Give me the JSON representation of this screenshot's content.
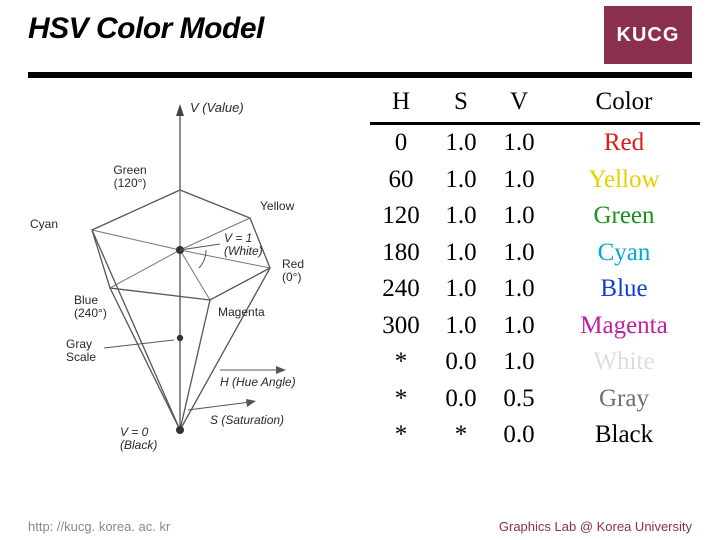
{
  "header": {
    "title": "HSV Color Model",
    "logo": "KUCG"
  },
  "diagram": {
    "axis_value_label": "V (Value)",
    "hue_axis_label": "H (Hue Angle)",
    "sat_axis_label": "S (Saturation)",
    "top_label": "V = 1\n(White)",
    "bottom_label": "V = 0\n(Black)",
    "gray_label": "Gray\nScale",
    "vertices": {
      "green": "Green\n(120°)",
      "yellow": "Yellow",
      "red": "Red\n(0°)",
      "magenta": "Magenta",
      "blue": "Blue\n(240°)",
      "cyan": "Cyan"
    },
    "line_color": "#444444",
    "node_color": "#333333",
    "text_color": "#2a2a2a",
    "axis_width": 1.2
  },
  "table": {
    "headers": [
      "H",
      "S",
      "V",
      "Color"
    ],
    "rows": [
      {
        "h": "0",
        "s": "1.0",
        "v": "1.0",
        "name": "Red",
        "color": "#e01a1a"
      },
      {
        "h": "60",
        "s": "1.0",
        "v": "1.0",
        "name": "Yellow",
        "color": "#e8d000"
      },
      {
        "h": "120",
        "s": "1.0",
        "v": "1.0",
        "name": "Green",
        "color": "#1a8f1a"
      },
      {
        "h": "180",
        "s": "1.0",
        "v": "1.0",
        "name": "Cyan",
        "color": "#00aad4"
      },
      {
        "h": "240",
        "s": "1.0",
        "v": "1.0",
        "name": "Blue",
        "color": "#1040d0"
      },
      {
        "h": "300",
        "s": "1.0",
        "v": "1.0",
        "name": "Magenta",
        "color": "#c020a0"
      },
      {
        "h": "*",
        "s": "0.0",
        "v": "1.0",
        "name": "White",
        "color": "#dddddd"
      },
      {
        "h": "*",
        "s": "0.0",
        "v": "0.5",
        "name": "Gray",
        "color": "#707070"
      },
      {
        "h": "*",
        "s": "*",
        "v": "0.0",
        "name": "Black",
        "color": "#000000"
      }
    ],
    "header_fontsize": 25,
    "row_fontsize": 25,
    "border_color": "#000000"
  },
  "footer": {
    "left": "http: //kucg. korea. ac. kr",
    "right": "Graphics Lab @ Korea University",
    "right_color": "#8b2f4e"
  }
}
